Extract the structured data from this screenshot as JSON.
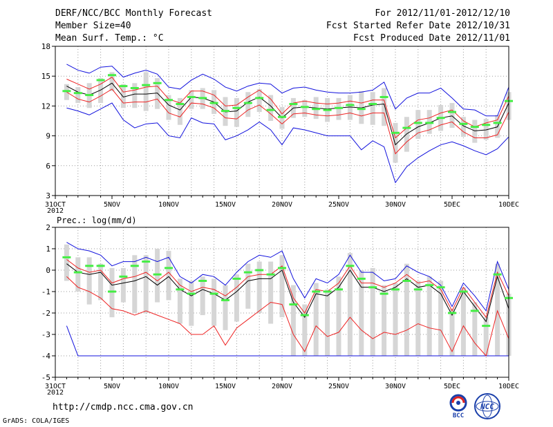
{
  "header": {
    "title": "DERF/NCC/BCC Monthly Forecast",
    "member_size": "Member Size=40",
    "variable": "Mean Surf. Temp.: °C",
    "period": "For 2012/11/01-2012/12/10",
    "fcst_started": "Fcst Started Refer Date 2012/10/31",
    "fcst_produced": "Fcst Produced Date 2012/11/01"
  },
  "footer": {
    "url": "http://cmdp.ncc.cma.gov.cn",
    "credit": "GrADS: COLA/IGES",
    "logo_bcc": "BCC",
    "logo_ncc": "NCC"
  },
  "colors": {
    "ensemble_mean": "#000000",
    "spread": "#ee2222",
    "extremes": "#1010dd",
    "member_box": "#d6d6d6",
    "median": "#44ee44",
    "grid": "#999999"
  },
  "chart_data": [
    {
      "type": "line",
      "title": "Mean Surf. Temp.: °C",
      "x_tick_labels": [
        "31OCT",
        "5NOV",
        "10NOV",
        "15NOV",
        "20NOV",
        "25NOV",
        "30NOV",
        "5DEC",
        "10DEC"
      ],
      "x_tick_index": [
        0,
        5,
        10,
        15,
        20,
        25,
        30,
        35,
        40
      ],
      "year_label": "2012",
      "ylim": [
        3,
        18
      ],
      "y_ticks": [
        3,
        6,
        9,
        12,
        15,
        18
      ],
      "days": [
        1,
        2,
        3,
        4,
        5,
        6,
        7,
        8,
        9,
        10,
        11,
        12,
        13,
        14,
        15,
        16,
        17,
        18,
        19,
        20,
        21,
        22,
        23,
        24,
        25,
        26,
        27,
        28,
        29,
        30,
        31,
        32,
        33,
        34,
        35,
        36,
        37,
        38,
        39,
        40
      ],
      "max": [
        16.2,
        15.6,
        15.3,
        15.9,
        16.0,
        14.9,
        15.3,
        15.6,
        15.2,
        13.9,
        13.7,
        14.6,
        15.2,
        14.7,
        13.9,
        13.5,
        14.0,
        14.3,
        14.2,
        13.3,
        13.8,
        13.9,
        13.6,
        13.4,
        13.3,
        13.3,
        13.4,
        13.6,
        14.4,
        11.7,
        12.8,
        13.3,
        13.3,
        13.8,
        12.8,
        11.7,
        11.6,
        11.0,
        11.0,
        13.9
      ],
      "p_upper": [
        14.7,
        14.2,
        13.7,
        14.2,
        14.9,
        13.4,
        13.6,
        13.9,
        14.0,
        12.7,
        12.3,
        13.5,
        13.5,
        13.1,
        12.0,
        12.1,
        12.9,
        13.6,
        12.7,
        11.2,
        12.3,
        12.5,
        12.3,
        12.2,
        12.3,
        12.5,
        12.3,
        12.6,
        12.6,
        8.8,
        9.8,
        10.6,
        10.8,
        11.3,
        11.6,
        10.5,
        9.9,
        10.3,
        10.6,
        13.0
      ],
      "mean": [
        14.0,
        13.4,
        13.1,
        13.6,
        14.3,
        12.9,
        13.2,
        13.2,
        13.3,
        12.1,
        11.6,
        12.9,
        12.8,
        12.4,
        11.4,
        11.5,
        12.4,
        12.9,
        12.0,
        10.8,
        11.8,
        11.9,
        11.8,
        11.7,
        11.8,
        11.9,
        11.8,
        12.1,
        12.2,
        8.1,
        9.2,
        9.9,
        10.3,
        10.8,
        11.0,
        10.0,
        9.5,
        9.6,
        9.9,
        12.3
      ],
      "p_lower": [
        13.4,
        12.7,
        12.4,
        13.0,
        13.7,
        12.3,
        12.4,
        12.4,
        12.7,
        11.3,
        10.9,
        12.3,
        12.2,
        11.8,
        10.8,
        10.7,
        11.6,
        12.1,
        11.2,
        10.2,
        11.2,
        11.3,
        11.1,
        11.0,
        11.1,
        11.3,
        11.0,
        11.3,
        11.3,
        7.2,
        8.4,
        9.3,
        9.6,
        10.1,
        10.4,
        9.4,
        8.8,
        8.8,
        9.1,
        11.4
      ],
      "min": [
        11.8,
        11.5,
        11.1,
        11.7,
        12.3,
        10.6,
        9.8,
        10.2,
        10.3,
        9.0,
        8.8,
        10.8,
        10.3,
        10.2,
        8.6,
        9.0,
        9.6,
        10.4,
        9.6,
        8.1,
        9.8,
        9.6,
        9.3,
        9.0,
        9.0,
        9.0,
        7.6,
        8.5,
        7.9,
        4.3,
        5.9,
        6.8,
        7.5,
        8.1,
        8.4,
        8.0,
        7.5,
        7.1,
        7.7,
        8.9
      ],
      "box_hi": [
        14.2,
        13.9,
        14.3,
        14.8,
        15.4,
        14.2,
        14.3,
        15.4,
        14.8,
        13.1,
        12.8,
        13.6,
        13.8,
        13.6,
        12.9,
        12.8,
        13.4,
        13.7,
        13.1,
        11.9,
        12.8,
        12.6,
        12.9,
        12.8,
        12.8,
        13.1,
        13.5,
        13.4,
        13.8,
        10.3,
        10.9,
        11.6,
        11.6,
        12.1,
        12.3,
        10.9,
        10.6,
        10.7,
        11.1,
        13.4
      ],
      "box_lo": [
        12.6,
        12.3,
        11.8,
        12.3,
        13.5,
        11.8,
        11.8,
        11.5,
        11.7,
        10.6,
        10.1,
        11.7,
        11.7,
        11.2,
        10.0,
        9.9,
        10.9,
        11.4,
        10.5,
        9.7,
        10.8,
        10.9,
        10.7,
        10.4,
        10.6,
        10.6,
        10.2,
        10.1,
        10.0,
        6.3,
        7.4,
        8.7,
        9.2,
        9.5,
        9.8,
        8.9,
        8.3,
        8.6,
        8.8,
        10.6
      ],
      "median": [
        13.5,
        13.3,
        13.1,
        14.6,
        15.1,
        14.0,
        13.8,
        14.1,
        14.3,
        12.6,
        12.2,
        12.9,
        12.8,
        12.3,
        11.5,
        11.8,
        12.3,
        12.8,
        11.6,
        10.9,
        12.2,
        11.9,
        11.7,
        11.6,
        11.8,
        12.1,
        11.7,
        12.2,
        12.9,
        9.3,
        9.8,
        10.3,
        10.3,
        10.8,
        11.4,
        10.2,
        9.9,
        10.1,
        10.3,
        12.5
      ]
    },
    {
      "type": "line",
      "title": "Prec.: log(mm/d)",
      "x_tick_labels": [
        "31OCT",
        "5NOV",
        "10NOV",
        "15NOV",
        "20NOV",
        "25NOV",
        "30NOV",
        "5DEC",
        "10DEC"
      ],
      "x_tick_index": [
        0,
        5,
        10,
        15,
        20,
        25,
        30,
        35,
        40
      ],
      "year_label": "2012",
      "ylim": [
        -5,
        2
      ],
      "y_ticks": [
        -5,
        -4,
        -3,
        -2,
        -1,
        0,
        1,
        2
      ],
      "days": [
        1,
        2,
        3,
        4,
        5,
        6,
        7,
        8,
        9,
        10,
        11,
        12,
        13,
        14,
        15,
        16,
        17,
        18,
        19,
        20,
        21,
        22,
        23,
        24,
        25,
        26,
        27,
        28,
        29,
        30,
        31,
        32,
        33,
        34,
        35,
        36,
        37,
        38,
        39,
        40
      ],
      "max": [
        1.3,
        1.0,
        0.9,
        0.7,
        0.2,
        0.4,
        0.4,
        0.6,
        0.4,
        0.6,
        -0.3,
        -0.6,
        -0.2,
        -0.3,
        -0.7,
        -0.1,
        0.4,
        0.7,
        0.6,
        0.9,
        -0.4,
        -1.3,
        -0.4,
        -0.6,
        -0.2,
        0.7,
        -0.1,
        -0.1,
        -0.5,
        -0.4,
        0.2,
        -0.1,
        -0.3,
        -0.7,
        -1.7,
        -0.6,
        -1.2,
        -1.9,
        0.4,
        -0.9
      ],
      "p_upper": [
        0.5,
        0.1,
        -0.1,
        0.0,
        -0.6,
        -0.4,
        -0.3,
        -0.1,
        -0.5,
        -0.1,
        -0.7,
        -1.0,
        -0.8,
        -0.9,
        -1.2,
        -0.8,
        -0.3,
        -0.2,
        -0.2,
        0.2,
        -1.3,
        -2.0,
        -0.9,
        -1.0,
        -0.6,
        0.2,
        -0.6,
        -0.6,
        -0.8,
        -0.6,
        -0.2,
        -0.6,
        -0.5,
        -0.9,
        -1.9,
        -0.8,
        -1.5,
        -2.2,
        -0.1,
        -1.2
      ],
      "mean": [
        0.3,
        -0.1,
        -0.2,
        -0.1,
        -0.7,
        -0.6,
        -0.5,
        -0.3,
        -0.7,
        -0.3,
        -0.9,
        -1.2,
        -0.9,
        -1.1,
        -1.4,
        -1.0,
        -0.5,
        -0.4,
        -0.4,
        0.0,
        -1.5,
        -2.2,
        -1.1,
        -1.2,
        -0.8,
        0.0,
        -0.8,
        -0.8,
        -1.0,
        -0.8,
        -0.4,
        -0.8,
        -0.7,
        -1.1,
        -2.1,
        -1.0,
        -1.7,
        -2.4,
        -0.3,
        -1.8
      ],
      "p_lower": [
        -0.3,
        -0.8,
        -1.0,
        -1.3,
        -1.8,
        -1.9,
        -2.1,
        -1.9,
        -2.1,
        -2.3,
        -2.5,
        -3.0,
        -3.0,
        -2.6,
        -3.5,
        -2.7,
        -2.3,
        -1.9,
        -1.5,
        -1.6,
        -3.0,
        -3.8,
        -2.6,
        -3.1,
        -2.9,
        -2.2,
        -2.8,
        -3.2,
        -2.9,
        -3.0,
        -2.8,
        -2.5,
        -2.7,
        -2.8,
        -3.8,
        -2.6,
        -3.4,
        -4.0,
        -1.9,
        -3.2
      ],
      "min": [
        -2.6,
        -4.0,
        -4.0,
        -4.0,
        -4.0,
        -4.0,
        -4.0,
        -4.0,
        -4.0,
        -4.0,
        -4.0,
        -4.0,
        -4.0,
        -4.0,
        -4.0,
        -4.0,
        -4.0,
        -4.0,
        -4.0,
        -4.0,
        -4.0,
        -4.0,
        -4.0,
        -4.0,
        -4.0,
        -4.0,
        -4.0,
        -4.0,
        -4.0,
        -4.0,
        -4.0,
        -4.0,
        -4.0,
        -4.0,
        -4.0,
        -4.0,
        -4.0,
        -4.0,
        -4.0,
        -4.0
      ],
      "box_hi": [
        1.2,
        0.6,
        0.6,
        0.3,
        0.1,
        0.1,
        0.7,
        0.7,
        1.0,
        0.9,
        -0.4,
        -0.5,
        -0.3,
        -0.4,
        -0.7,
        -0.2,
        0.3,
        0.4,
        0.4,
        0.7,
        -0.7,
        -1.6,
        -0.6,
        -0.9,
        -0.3,
        0.8,
        0.0,
        0.1,
        -0.7,
        -0.6,
        0.3,
        -0.5,
        -0.3,
        -0.5,
        -1.8,
        -0.8,
        -1.5,
        -2.2,
        0.3,
        -1.1
      ],
      "box_lo": [
        -0.5,
        -1.0,
        -1.6,
        -1.4,
        -2.2,
        -1.5,
        -2.0,
        -2.0,
        -1.5,
        -1.4,
        -2.5,
        -2.6,
        -2.1,
        -2.6,
        -2.8,
        -2.4,
        -1.8,
        -2.0,
        -2.5,
        -2.2,
        -4.0,
        -4.0,
        -4.0,
        -4.0,
        -4.0,
        -4.0,
        -4.0,
        -4.0,
        -4.0,
        -4.0,
        -4.0,
        -4.0,
        -4.0,
        -4.0,
        -4.0,
        -4.0,
        -4.0,
        -4.0,
        -4.0,
        -4.0
      ],
      "median": [
        0.6,
        -0.1,
        0.2,
        0.2,
        -1.0,
        -0.3,
        0.2,
        0.4,
        -0.2,
        0.1,
        -0.9,
        -1.1,
        -0.5,
        -1.1,
        -1.4,
        -0.4,
        -0.1,
        0.0,
        -0.2,
        0.1,
        -1.6,
        -2.1,
        -1.0,
        -1.0,
        -0.9,
        0.2,
        -0.4,
        -0.8,
        -1.1,
        -0.9,
        -0.5,
        -0.9,
        -0.7,
        -0.8,
        -2.0,
        -1.0,
        -1.9,
        -2.6,
        -0.2,
        -1.3
      ]
    }
  ]
}
